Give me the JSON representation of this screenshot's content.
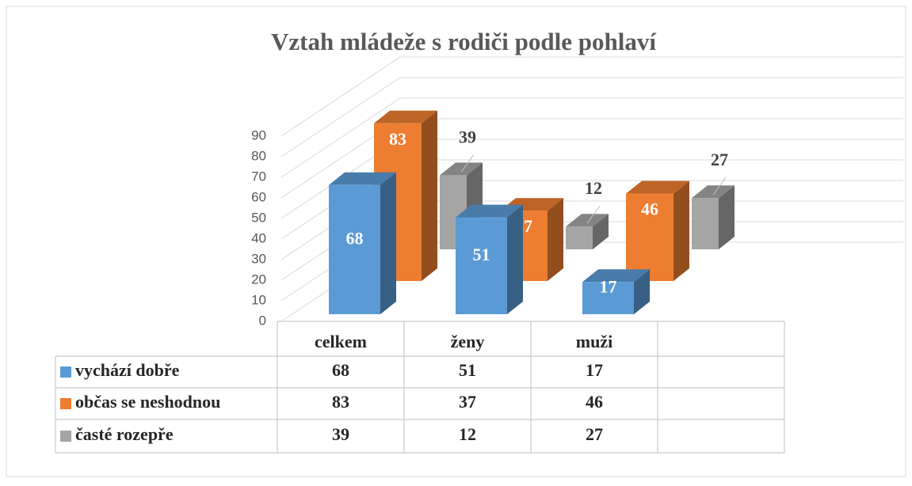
{
  "chart_data": {
    "type": "bar3d",
    "title": "Vztah mládeže s rodiči podle pohlaví",
    "categories": [
      "celkem",
      "ženy",
      "muži"
    ],
    "series": [
      {
        "name": "vychází dobře",
        "color": "#5b9bd5",
        "values": [
          68,
          51,
          17
        ]
      },
      {
        "name": "občas se neshodnou",
        "color": "#ed7d31",
        "values": [
          83,
          37,
          46
        ]
      },
      {
        "name": "časté rozepře",
        "color": "#a5a5a5",
        "values": [
          39,
          12,
          27
        ]
      }
    ],
    "ylim": [
      0,
      90
    ],
    "yticks": [
      0,
      10,
      20,
      30,
      40,
      50,
      60,
      70,
      80,
      90
    ],
    "grid": true
  }
}
